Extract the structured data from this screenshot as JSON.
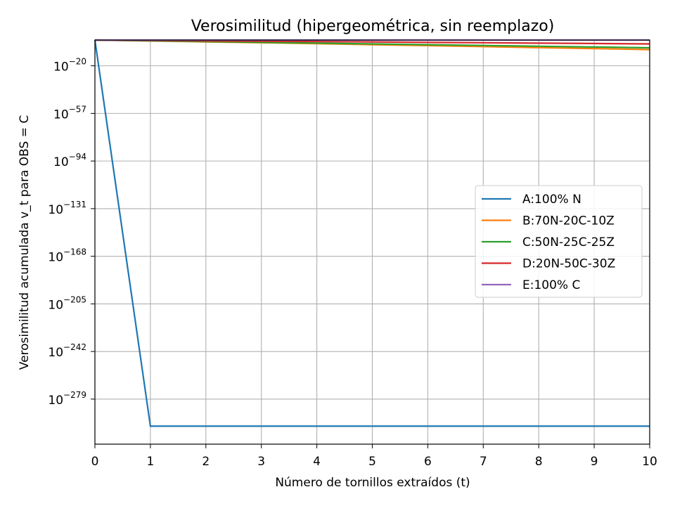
{
  "chart_data": {
    "type": "line",
    "title": "Verosimilitud (hipergeométrica, sin reemplazo)",
    "xlabel": "Número de tornillos extraídos (t)",
    "ylabel": "Verosimilitud acumulada v_t para OBS = C",
    "yscale": "log",
    "xlim": [
      0,
      10
    ],
    "ylim_log10": [
      -314,
      0
    ],
    "grid": true,
    "legend_position": "center-right",
    "x": [
      0,
      1,
      2,
      3,
      4,
      5,
      6,
      7,
      8,
      9,
      10
    ],
    "xticks": [
      "0",
      "1",
      "2",
      "3",
      "4",
      "5",
      "6",
      "7",
      "8",
      "9",
      "10"
    ],
    "yticks": [
      {
        "base": "10",
        "exp": "−20",
        "value": -20
      },
      {
        "base": "10",
        "exp": "−57",
        "value": -57
      },
      {
        "base": "10",
        "exp": "−94",
        "value": -94
      },
      {
        "base": "10",
        "exp": "−131",
        "value": -131
      },
      {
        "base": "10",
        "exp": "−168",
        "value": -168
      },
      {
        "base": "10",
        "exp": "−205",
        "value": -205
      },
      {
        "base": "10",
        "exp": "−242",
        "value": -242
      },
      {
        "base": "10",
        "exp": "−279",
        "value": -279
      }
    ],
    "series": [
      {
        "name": "A:100% N",
        "color": "#1f77b4",
        "log10_values": [
          0,
          -300,
          -300,
          -300,
          -300,
          -300,
          -300,
          -300,
          -300,
          -300,
          -300
        ]
      },
      {
        "name": "B:70N-20C-10Z",
        "color": "#ff7f0e",
        "log10_values": [
          0,
          -0.7,
          -1.4,
          -2.1,
          -2.8,
          -3.6,
          -4.3,
          -5.1,
          -5.9,
          -6.6,
          -7.4
        ]
      },
      {
        "name": "C:50N-25C-25Z",
        "color": "#2ca02c",
        "log10_values": [
          0,
          -0.6,
          -1.2,
          -1.8,
          -2.4,
          -3.0,
          -3.6,
          -4.2,
          -4.8,
          -5.4,
          -6.0
        ]
      },
      {
        "name": "D:20N-50C-30Z",
        "color": "#d62728",
        "log10_values": [
          0,
          -0.3,
          -0.6,
          -0.9,
          -1.2,
          -1.5,
          -1.8,
          -2.1,
          -2.4,
          -2.7,
          -3.0
        ]
      },
      {
        "name": "E:100% C",
        "color": "#9467bd",
        "log10_values": [
          0,
          0,
          0,
          0,
          0,
          0,
          0,
          0,
          0,
          0,
          0
        ]
      }
    ]
  }
}
